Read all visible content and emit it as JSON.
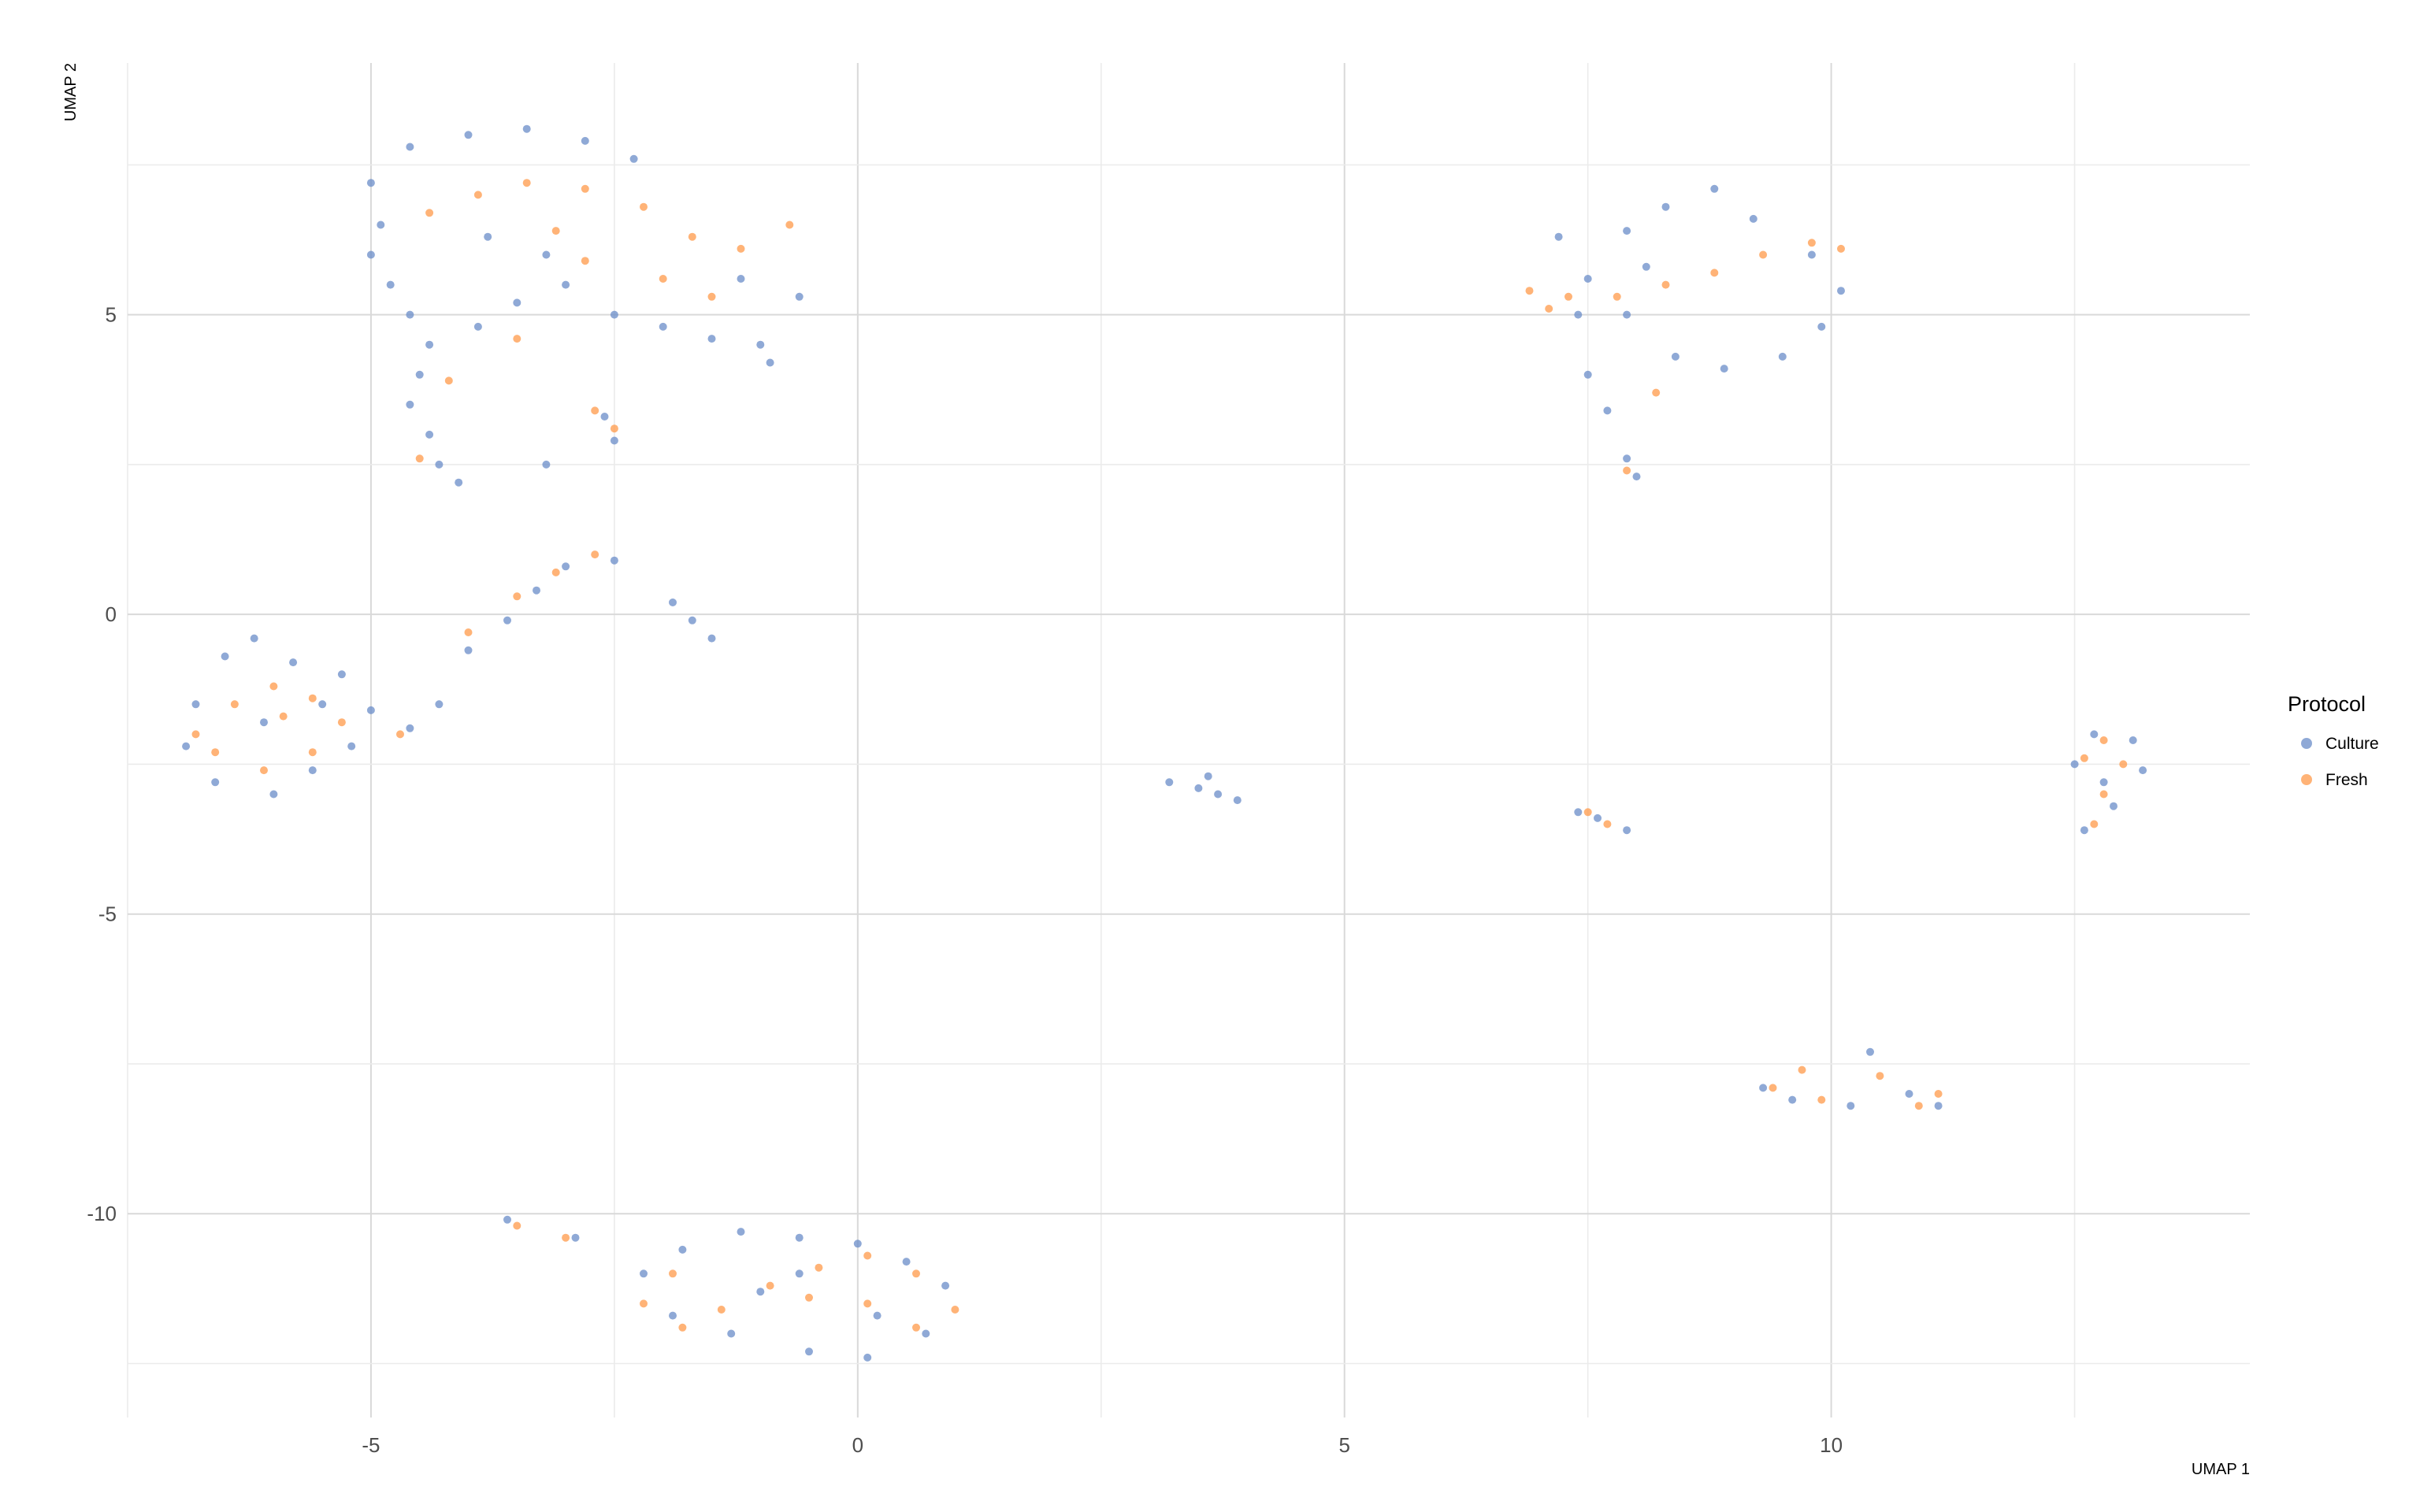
{
  "chart_data": {
    "type": "scatter",
    "title": "",
    "xlabel": "UMAP 1",
    "ylabel": "UMAP 2",
    "xlim": [
      -7.5,
      14.3
    ],
    "ylim": [
      -13.4,
      9.2
    ],
    "x_ticks": [
      -5,
      0,
      5,
      10
    ],
    "x_tick_labels": [
      "-5",
      "0",
      "5",
      "10"
    ],
    "y_ticks": [
      -10,
      -5,
      0,
      5
    ],
    "y_tick_labels": [
      "-10",
      "-5",
      "0",
      "5"
    ],
    "grid": true,
    "legend": {
      "title": "Protocol",
      "placement": "right",
      "entries": [
        "Culture",
        "Fresh"
      ]
    },
    "series": [
      {
        "name": "Culture",
        "color": "#6A8CC8",
        "values": [
          [
            -5.0,
            7.2
          ],
          [
            -4.6,
            7.8
          ],
          [
            -4.0,
            8.0
          ],
          [
            -3.4,
            8.1
          ],
          [
            -2.8,
            7.9
          ],
          [
            -2.3,
            7.6
          ],
          [
            -4.9,
            6.5
          ],
          [
            -5.0,
            6.0
          ],
          [
            -4.8,
            5.5
          ],
          [
            -4.6,
            5.0
          ],
          [
            -4.4,
            4.5
          ],
          [
            -4.5,
            4.0
          ],
          [
            -4.6,
            3.5
          ],
          [
            -4.4,
            3.0
          ],
          [
            -4.3,
            2.5
          ],
          [
            -4.1,
            2.2
          ],
          [
            -3.9,
            4.8
          ],
          [
            -3.5,
            5.2
          ],
          [
            -3.0,
            5.5
          ],
          [
            -2.5,
            5.0
          ],
          [
            -2.0,
            4.8
          ],
          [
            -1.5,
            4.6
          ],
          [
            -1.0,
            4.5
          ],
          [
            -0.9,
            4.2
          ],
          [
            -0.6,
            5.3
          ],
          [
            -1.2,
            5.6
          ],
          [
            -3.8,
            6.3
          ],
          [
            -3.2,
            6.0
          ],
          [
            -2.6,
            3.3
          ],
          [
            -2.5,
            2.9
          ],
          [
            -3.2,
            2.5
          ],
          [
            -6.8,
            -1.5
          ],
          [
            -6.5,
            -0.7
          ],
          [
            -6.2,
            -0.4
          ],
          [
            -5.8,
            -0.8
          ],
          [
            -5.3,
            -1.0
          ],
          [
            -5.0,
            -1.6
          ],
          [
            -5.2,
            -2.2
          ],
          [
            -5.6,
            -2.6
          ],
          [
            -6.0,
            -3.0
          ],
          [
            -6.6,
            -2.8
          ],
          [
            -6.9,
            -2.2
          ],
          [
            -6.1,
            -1.8
          ],
          [
            -5.5,
            -1.5
          ],
          [
            -4.6,
            -1.9
          ],
          [
            -4.3,
            -1.5
          ],
          [
            -4.0,
            -0.6
          ],
          [
            -3.6,
            -0.1
          ],
          [
            -3.3,
            0.4
          ],
          [
            -3.0,
            0.8
          ],
          [
            -2.5,
            0.9
          ],
          [
            -1.9,
            0.2
          ],
          [
            -1.7,
            -0.1
          ],
          [
            -1.5,
            -0.4
          ],
          [
            3.2,
            -2.8
          ],
          [
            3.5,
            -2.9
          ],
          [
            3.7,
            -3.0
          ],
          [
            3.6,
            -2.7
          ],
          [
            3.9,
            -3.1
          ],
          [
            7.2,
            6.3
          ],
          [
            7.5,
            5.6
          ],
          [
            7.9,
            5.0
          ],
          [
            8.4,
            4.3
          ],
          [
            8.9,
            4.1
          ],
          [
            9.5,
            4.3
          ],
          [
            9.9,
            4.8
          ],
          [
            10.1,
            5.4
          ],
          [
            9.8,
            6.0
          ],
          [
            9.2,
            6.6
          ],
          [
            8.8,
            7.1
          ],
          [
            8.3,
            6.8
          ],
          [
            7.9,
            6.4
          ],
          [
            7.5,
            4.0
          ],
          [
            7.7,
            3.4
          ],
          [
            7.9,
            2.6
          ],
          [
            8.0,
            2.3
          ],
          [
            7.4,
            5.0
          ],
          [
            8.1,
            5.8
          ],
          [
            7.4,
            -3.3
          ],
          [
            7.6,
            -3.4
          ],
          [
            7.9,
            -3.6
          ],
          [
            12.5,
            -2.5
          ],
          [
            12.7,
            -2.0
          ],
          [
            13.1,
            -2.1
          ],
          [
            13.2,
            -2.6
          ],
          [
            12.9,
            -3.2
          ],
          [
            12.6,
            -3.6
          ],
          [
            12.8,
            -2.8
          ],
          [
            9.3,
            -7.9
          ],
          [
            9.6,
            -8.1
          ],
          [
            10.2,
            -8.2
          ],
          [
            10.4,
            -7.3
          ],
          [
            10.8,
            -8.0
          ],
          [
            11.1,
            -8.2
          ],
          [
            -2.2,
            -11.0
          ],
          [
            -1.8,
            -10.6
          ],
          [
            -1.2,
            -10.3
          ],
          [
            -0.6,
            -10.4
          ],
          [
            0.0,
            -10.5
          ],
          [
            0.5,
            -10.8
          ],
          [
            0.9,
            -11.2
          ],
          [
            0.7,
            -12.0
          ],
          [
            0.1,
            -12.4
          ],
          [
            -0.5,
            -12.3
          ],
          [
            -1.3,
            -12.0
          ],
          [
            -1.9,
            -11.7
          ],
          [
            -3.6,
            -10.1
          ],
          [
            -2.9,
            -10.4
          ],
          [
            -1.0,
            -11.3
          ],
          [
            0.2,
            -11.7
          ],
          [
            -0.6,
            -11.0
          ]
        ]
      },
      {
        "name": "Fresh",
        "color": "#FF9A4A",
        "values": [
          [
            -4.4,
            6.7
          ],
          [
            -3.9,
            7.0
          ],
          [
            -3.4,
            7.2
          ],
          [
            -2.8,
            7.1
          ],
          [
            -2.2,
            6.8
          ],
          [
            -1.7,
            6.3
          ],
          [
            -1.2,
            6.1
          ],
          [
            -0.7,
            6.5
          ],
          [
            -2.8,
            5.9
          ],
          [
            -2.0,
            5.6
          ],
          [
            -3.5,
            4.6
          ],
          [
            -4.2,
            3.9
          ],
          [
            -4.5,
            2.6
          ],
          [
            -2.7,
            3.4
          ],
          [
            -2.5,
            3.1
          ],
          [
            -3.1,
            6.4
          ],
          [
            -1.5,
            5.3
          ],
          [
            -6.8,
            -2.0
          ],
          [
            -6.4,
            -1.5
          ],
          [
            -6.0,
            -1.2
          ],
          [
            -5.6,
            -1.4
          ],
          [
            -5.3,
            -1.8
          ],
          [
            -5.6,
            -2.3
          ],
          [
            -6.1,
            -2.6
          ],
          [
            -6.6,
            -2.3
          ],
          [
            -5.9,
            -1.7
          ],
          [
            -4.7,
            -2.0
          ],
          [
            -4.0,
            -0.3
          ],
          [
            -3.5,
            0.3
          ],
          [
            -3.1,
            0.7
          ],
          [
            -2.7,
            1.0
          ],
          [
            6.9,
            5.4
          ],
          [
            7.3,
            5.3
          ],
          [
            7.8,
            5.3
          ],
          [
            8.3,
            5.5
          ],
          [
            8.8,
            5.7
          ],
          [
            9.3,
            6.0
          ],
          [
            9.8,
            6.2
          ],
          [
            10.1,
            6.1
          ],
          [
            7.1,
            5.1
          ],
          [
            8.2,
            3.7
          ],
          [
            7.9,
            2.4
          ],
          [
            7.5,
            -3.3
          ],
          [
            7.7,
            -3.5
          ],
          [
            12.6,
            -2.4
          ],
          [
            12.8,
            -2.1
          ],
          [
            13.0,
            -2.5
          ],
          [
            12.8,
            -3.0
          ],
          [
            12.7,
            -3.5
          ],
          [
            9.4,
            -7.9
          ],
          [
            9.7,
            -7.6
          ],
          [
            9.9,
            -8.1
          ],
          [
            10.5,
            -7.7
          ],
          [
            10.9,
            -8.2
          ],
          [
            11.1,
            -8.0
          ],
          [
            -2.2,
            -11.5
          ],
          [
            -1.8,
            -11.9
          ],
          [
            -1.4,
            -11.6
          ],
          [
            -0.9,
            -11.2
          ],
          [
            -0.4,
            -10.9
          ],
          [
            0.1,
            -10.7
          ],
          [
            0.6,
            -11.0
          ],
          [
            1.0,
            -11.6
          ],
          [
            0.6,
            -11.9
          ],
          [
            0.1,
            -11.5
          ],
          [
            -0.5,
            -11.4
          ],
          [
            -3.5,
            -10.2
          ],
          [
            -3.0,
            -10.4
          ],
          [
            -1.9,
            -11.0
          ]
        ]
      }
    ]
  }
}
